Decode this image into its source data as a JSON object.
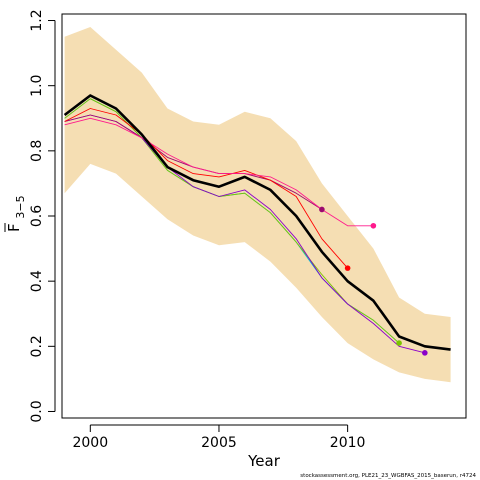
{
  "chart_data": {
    "type": "line",
    "title": "",
    "xlabel": "Year",
    "ylabel": "F̄ 3–5",
    "ylabel_main": "F",
    "ylabel_sub": "3−5",
    "xlim": [
      1998.9,
      2014.6
    ],
    "ylim": [
      -0.02,
      1.22
    ],
    "x_ticks": [
      2000,
      2005,
      2010
    ],
    "y_ticks": [
      0.0,
      0.2,
      0.4,
      0.6,
      0.8,
      1.0,
      1.2
    ],
    "y_tick_labels": [
      "0.0",
      "0.2",
      "0.4",
      "0.6",
      "0.8",
      "1.0",
      "1.2"
    ],
    "x_tick_labels": [
      "2000",
      "2005",
      "2010"
    ],
    "grid": false,
    "legend": "none",
    "footnote": "stockassessment.org, PLE21_23_WGBFAS_2015_baserun, r4724",
    "confidence_band": {
      "color": "#f5deb3",
      "x": [
        1999,
        2000,
        2001,
        2002,
        2003,
        2004,
        2005,
        2006,
        2007,
        2008,
        2009,
        2010,
        2011,
        2012,
        2013,
        2014
      ],
      "upper": [
        1.15,
        1.18,
        1.11,
        1.04,
        0.93,
        0.89,
        0.88,
        0.92,
        0.9,
        0.83,
        0.7,
        0.6,
        0.5,
        0.35,
        0.3,
        0.29
      ],
      "lower": [
        0.67,
        0.76,
        0.73,
        0.66,
        0.59,
        0.54,
        0.51,
        0.52,
        0.46,
        0.38,
        0.29,
        0.21,
        0.16,
        0.12,
        0.1,
        0.09
      ]
    },
    "series": [
      {
        "color": "#00bcd4",
        "x": [
          1999,
          2000,
          2001,
          2002,
          2003,
          2004,
          2005,
          2006,
          2007,
          2008,
          2009,
          2010,
          2011,
          2012
        ],
        "values": [
          0.9,
          0.96,
          0.92,
          0.84,
          0.74,
          0.69,
          0.66,
          0.67,
          0.61,
          0.52,
          0.41,
          0.33,
          0.28,
          0.21
        ],
        "end_marker": false
      },
      {
        "color": "#7cc400",
        "x": [
          1999,
          2000,
          2001,
          2002,
          2003,
          2004,
          2005,
          2006,
          2007,
          2008,
          2009,
          2010,
          2011,
          2012
        ],
        "values": [
          0.9,
          0.96,
          0.92,
          0.84,
          0.74,
          0.69,
          0.66,
          0.67,
          0.61,
          0.52,
          0.42,
          0.33,
          0.28,
          0.21
        ],
        "end_marker": true
      },
      {
        "color": "#8b00c9",
        "x": [
          1999,
          2000,
          2001,
          2002,
          2003,
          2004,
          2005,
          2006,
          2007,
          2008,
          2009,
          2010,
          2011,
          2012,
          2013
        ],
        "values": [
          0.89,
          0.91,
          0.89,
          0.84,
          0.75,
          0.69,
          0.66,
          0.68,
          0.62,
          0.53,
          0.41,
          0.33,
          0.27,
          0.2,
          0.18
        ],
        "end_marker": true
      },
      {
        "color": "#9c0a6e",
        "x": [
          1999,
          2000,
          2001,
          2002,
          2003,
          2004,
          2005,
          2006,
          2007,
          2008,
          2009
        ],
        "values": [
          0.89,
          0.91,
          0.89,
          0.84,
          0.78,
          0.75,
          0.73,
          0.73,
          0.71,
          0.67,
          0.62
        ],
        "end_marker": true
      },
      {
        "color": "#ff0000",
        "x": [
          1999,
          2000,
          2001,
          2002,
          2003,
          2004,
          2005,
          2006,
          2007,
          2008,
          2009,
          2010
        ],
        "values": [
          0.89,
          0.93,
          0.91,
          0.85,
          0.77,
          0.73,
          0.72,
          0.74,
          0.71,
          0.66,
          0.53,
          0.44
        ],
        "end_marker": true
      },
      {
        "color": "#ff1a8c",
        "x": [
          1999,
          2000,
          2001,
          2002,
          2003,
          2004,
          2005,
          2006,
          2007,
          2008,
          2009,
          2010,
          2011
        ],
        "values": [
          0.88,
          0.9,
          0.88,
          0.84,
          0.79,
          0.75,
          0.73,
          0.73,
          0.72,
          0.68,
          0.62,
          0.57,
          0.57
        ],
        "end_marker": true
      },
      {
        "color": "#000000",
        "bold": true,
        "x": [
          1999,
          2000,
          2001,
          2002,
          2003,
          2004,
          2005,
          2006,
          2007,
          2008,
          2009,
          2010,
          2011,
          2012,
          2013,
          2014
        ],
        "values": [
          0.91,
          0.97,
          0.93,
          0.85,
          0.75,
          0.71,
          0.69,
          0.72,
          0.68,
          0.6,
          0.49,
          0.4,
          0.34,
          0.23,
          0.2,
          0.19
        ],
        "end_marker": false
      }
    ]
  }
}
